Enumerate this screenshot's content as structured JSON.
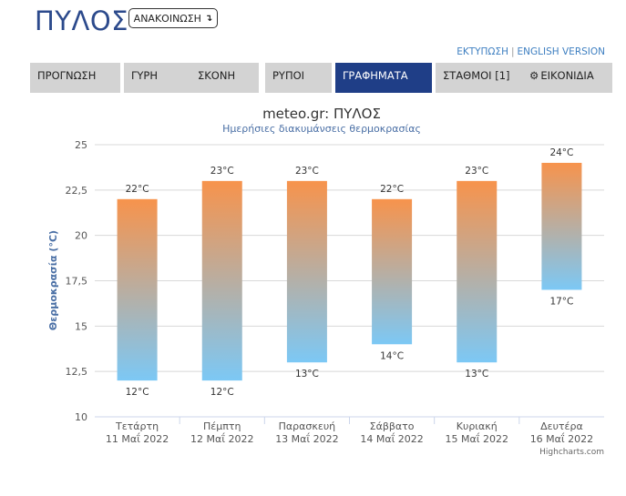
{
  "header": {
    "site_title": "ΠΥΛΟΣ",
    "announce_label": "ΑΝΑΚΟΙΝΩΣΗ",
    "print_link": "ΕΚΤΥΠΩΣΗ",
    "english_link": "ENGLISH VERSION"
  },
  "nav": {
    "tabs": [
      {
        "label": "ΠΡΟΓΝΩΣΗ",
        "active": false
      },
      {
        "label": "ΓΥΡΗ",
        "active": false
      },
      {
        "label": "ΣΚΟΝΗ",
        "active": false
      },
      {
        "label": "ΡΥΠΟΙ",
        "active": false
      },
      {
        "label": "ΓΡΑΦΗΜΑΤΑ",
        "active": true
      },
      {
        "label": "ΣΤΑΘΜΟΙ [1]",
        "active": false
      },
      {
        "label": "ΕΙΚΟΝΙΔΙΑ",
        "active": false,
        "icon": "gear-icon"
      }
    ]
  },
  "chart_data": {
    "type": "bar",
    "subtype": "columnrange",
    "title": "meteo.gr: ΠΥΛΟΣ",
    "subtitle": "Ημερήσιες διακυμάνσεις θερμοκρασίας",
    "ylabel": "Θερμοκρασία (°C)",
    "xlabel": "",
    "ylim": [
      10,
      25
    ],
    "yticks": [
      "10",
      "12,5",
      "15",
      "17,5",
      "20",
      "22,5",
      "25"
    ],
    "grid": true,
    "categories": [
      [
        "Τετάρτη",
        "11 Μαΐ 2022"
      ],
      [
        "Πέμπτη",
        "12 Μαΐ 2022"
      ],
      [
        "Παρασκευή",
        "13 Μαΐ 2022"
      ],
      [
        "Σάββατο",
        "14 Μαΐ 2022"
      ],
      [
        "Κυριακή",
        "15 Μαΐ 2022"
      ],
      [
        "Δευτέρα",
        "16 Μαΐ 2022"
      ]
    ],
    "low": [
      12,
      12,
      13,
      14,
      13,
      17
    ],
    "high": [
      22,
      23,
      23,
      22,
      23,
      24
    ],
    "low_labels": [
      "12°C",
      "12°C",
      "13°C",
      "14°C",
      "13°C",
      "17°C"
    ],
    "high_labels": [
      "22°C",
      "23°C",
      "23°C",
      "22°C",
      "23°C",
      "24°C"
    ],
    "colors": {
      "top": "#f7934c",
      "bottom": "#7cc8f5"
    },
    "credits": "Highcharts.com"
  }
}
